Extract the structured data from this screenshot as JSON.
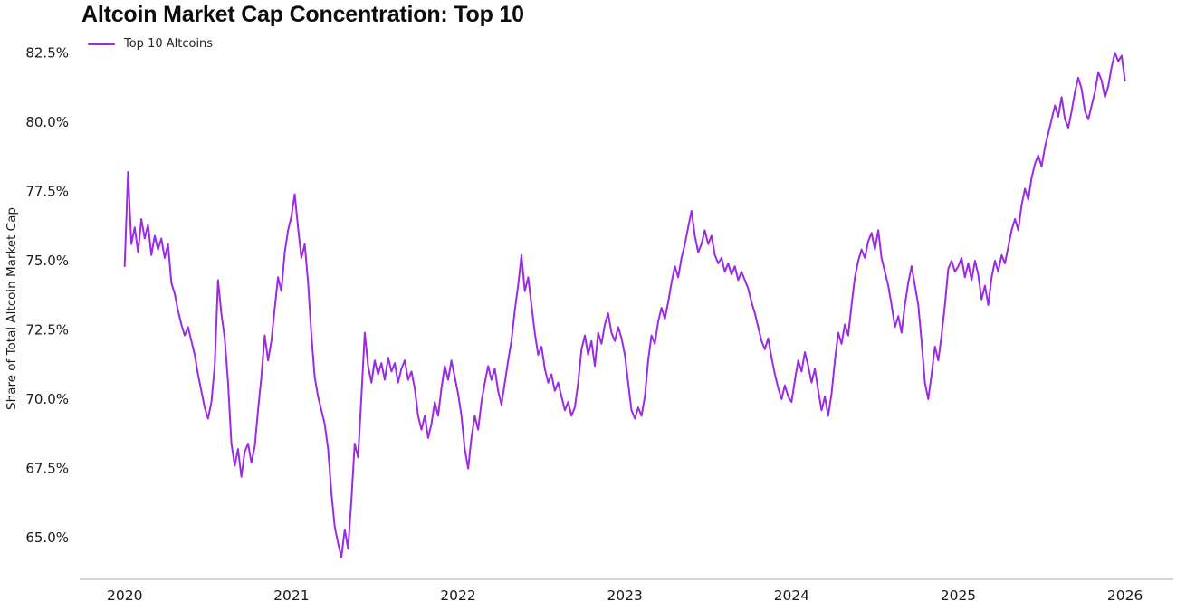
{
  "title": "Altcoin Market Cap Concentration: Top 10",
  "ylabel": "Share of Total Altcoin Market Cap",
  "legend": {
    "label": "Top 10 Altcoins"
  },
  "colors": {
    "series": "#9b2be2",
    "axis": "#c9c9c9",
    "text": "#1a1a1a"
  },
  "chart_data": {
    "type": "line",
    "title": "Altcoin Market Cap Concentration: Top 10",
    "xlabel": "",
    "ylabel": "Share of Total Altcoin Market Cap",
    "grid": false,
    "legend_position": "top-left",
    "series_name": "Top 10 Altcoins",
    "color": "#9b2be2",
    "xlim": [
      2019.73,
      2026.29
    ],
    "ylim": [
      63.5,
      83.1
    ],
    "xticks": [
      2020,
      2021,
      2022,
      2023,
      2024,
      2025,
      2026
    ],
    "xtick_labels": [
      "2020",
      "2021",
      "2022",
      "2023",
      "2024",
      "2025",
      "2026"
    ],
    "yticks": [
      65.0,
      67.5,
      70.0,
      72.5,
      75.0,
      77.5,
      80.0,
      82.5
    ],
    "ytick_labels": [
      "65.0%",
      "67.5%",
      "70.0%",
      "72.5%",
      "75.0%",
      "77.5%",
      "80.0%",
      "82.5%"
    ],
    "x_start": 2020.0,
    "x_step": 0.02,
    "values": [
      74.8,
      78.2,
      75.6,
      76.2,
      75.3,
      76.5,
      75.8,
      76.3,
      75.2,
      75.9,
      75.4,
      75.8,
      75.1,
      75.6,
      74.2,
      73.8,
      73.2,
      72.7,
      72.3,
      72.6,
      72.1,
      71.6,
      70.9,
      70.3,
      69.7,
      69.3,
      69.9,
      71.2,
      74.3,
      73.1,
      72.2,
      70.6,
      68.4,
      67.6,
      68.2,
      67.2,
      68.1,
      68.4,
      67.7,
      68.3,
      69.6,
      70.8,
      72.3,
      71.4,
      72.1,
      73.3,
      74.4,
      73.9,
      75.3,
      76.1,
      76.6,
      77.4,
      76.2,
      75.1,
      75.6,
      74.2,
      72.3,
      70.8,
      70.1,
      69.6,
      69.1,
      68.2,
      66.6,
      65.4,
      64.8,
      64.3,
      65.3,
      64.6,
      66.4,
      68.4,
      67.9,
      70.1,
      72.4,
      71.2,
      70.6,
      71.4,
      70.9,
      71.3,
      70.7,
      71.5,
      71.0,
      71.3,
      70.6,
      71.1,
      71.4,
      70.7,
      71.0,
      70.4,
      69.4,
      68.9,
      69.4,
      68.6,
      69.1,
      69.9,
      69.4,
      70.4,
      71.2,
      70.7,
      71.4,
      70.8,
      70.2,
      69.4,
      68.2,
      67.5,
      68.6,
      69.4,
      68.9,
      69.9,
      70.6,
      71.2,
      70.7,
      71.1,
      70.3,
      69.8,
      70.6,
      71.4,
      72.1,
      73.2,
      74.1,
      75.2,
      73.9,
      74.4,
      73.4,
      72.4,
      71.6,
      71.9,
      71.1,
      70.6,
      70.9,
      70.3,
      70.6,
      70.1,
      69.6,
      69.9,
      69.4,
      69.7,
      70.6,
      71.8,
      72.3,
      71.6,
      72.1,
      71.2,
      72.4,
      72.0,
      72.7,
      73.1,
      72.4,
      72.1,
      72.6,
      72.2,
      71.6,
      70.6,
      69.6,
      69.3,
      69.7,
      69.4,
      70.1,
      71.4,
      72.3,
      72.0,
      72.8,
      73.3,
      72.9,
      73.5,
      74.2,
      74.8,
      74.4,
      75.1,
      75.6,
      76.2,
      76.8,
      75.9,
      75.3,
      75.6,
      76.1,
      75.6,
      75.9,
      75.2,
      74.9,
      75.1,
      74.6,
      74.9,
      74.5,
      74.8,
      74.3,
      74.6,
      74.3,
      74.0,
      73.5,
      73.1,
      72.6,
      72.1,
      71.8,
      72.2,
      71.5,
      70.9,
      70.4,
      70.0,
      70.5,
      70.1,
      69.9,
      70.7,
      71.4,
      71.0,
      71.7,
      71.2,
      70.6,
      71.1,
      70.3,
      69.6,
      70.1,
      69.4,
      70.2,
      71.4,
      72.4,
      72.0,
      72.7,
      72.3,
      73.4,
      74.4,
      75.0,
      75.4,
      75.1,
      75.7,
      76.0,
      75.4,
      76.1,
      75.1,
      74.6,
      74.1,
      73.4,
      72.6,
      73.0,
      72.4,
      73.4,
      74.2,
      74.8,
      74.1,
      73.4,
      72.1,
      70.6,
      70.0,
      70.9,
      71.9,
      71.4,
      72.3,
      73.4,
      74.7,
      75.0,
      74.6,
      74.8,
      75.1,
      74.4,
      74.9,
      74.3,
      75.0,
      74.5,
      73.6,
      74.1,
      73.4,
      74.4,
      75.0,
      74.6,
      75.2,
      74.9,
      75.5,
      76.1,
      76.5,
      76.1,
      77.0,
      77.6,
      77.2,
      78.0,
      78.5,
      78.8,
      78.4,
      79.1,
      79.6,
      80.1,
      80.6,
      80.2,
      80.9,
      80.1,
      79.8,
      80.4,
      81.1,
      81.6,
      81.2,
      80.4,
      80.1,
      80.6,
      81.1,
      81.8,
      81.5,
      80.9,
      81.3,
      82.0,
      82.5,
      82.2,
      82.4,
      81.5
    ]
  }
}
